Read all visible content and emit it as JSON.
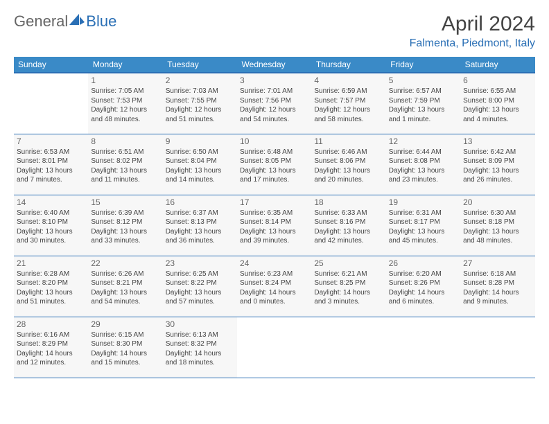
{
  "logo": {
    "text1": "General",
    "text2": "Blue"
  },
  "title": "April 2024",
  "location": "Falmenta, Piedmont, Italy",
  "colors": {
    "header_bg": "#3a8ac7",
    "header_border": "#2a6fb5",
    "cell_bg": "#f7f7f7",
    "text": "#444444",
    "accent": "#2a6fb5"
  },
  "weekdays": [
    "Sunday",
    "Monday",
    "Tuesday",
    "Wednesday",
    "Thursday",
    "Friday",
    "Saturday"
  ],
  "weeks": [
    [
      null,
      {
        "n": "1",
        "sr": "7:05 AM",
        "ss": "7:53 PM",
        "dl": "12 hours and 48 minutes."
      },
      {
        "n": "2",
        "sr": "7:03 AM",
        "ss": "7:55 PM",
        "dl": "12 hours and 51 minutes."
      },
      {
        "n": "3",
        "sr": "7:01 AM",
        "ss": "7:56 PM",
        "dl": "12 hours and 54 minutes."
      },
      {
        "n": "4",
        "sr": "6:59 AM",
        "ss": "7:57 PM",
        "dl": "12 hours and 58 minutes."
      },
      {
        "n": "5",
        "sr": "6:57 AM",
        "ss": "7:59 PM",
        "dl": "13 hours and 1 minute."
      },
      {
        "n": "6",
        "sr": "6:55 AM",
        "ss": "8:00 PM",
        "dl": "13 hours and 4 minutes."
      }
    ],
    [
      {
        "n": "7",
        "sr": "6:53 AM",
        "ss": "8:01 PM",
        "dl": "13 hours and 7 minutes."
      },
      {
        "n": "8",
        "sr": "6:51 AM",
        "ss": "8:02 PM",
        "dl": "13 hours and 11 minutes."
      },
      {
        "n": "9",
        "sr": "6:50 AM",
        "ss": "8:04 PM",
        "dl": "13 hours and 14 minutes."
      },
      {
        "n": "10",
        "sr": "6:48 AM",
        "ss": "8:05 PM",
        "dl": "13 hours and 17 minutes."
      },
      {
        "n": "11",
        "sr": "6:46 AM",
        "ss": "8:06 PM",
        "dl": "13 hours and 20 minutes."
      },
      {
        "n": "12",
        "sr": "6:44 AM",
        "ss": "8:08 PM",
        "dl": "13 hours and 23 minutes."
      },
      {
        "n": "13",
        "sr": "6:42 AM",
        "ss": "8:09 PM",
        "dl": "13 hours and 26 minutes."
      }
    ],
    [
      {
        "n": "14",
        "sr": "6:40 AM",
        "ss": "8:10 PM",
        "dl": "13 hours and 30 minutes."
      },
      {
        "n": "15",
        "sr": "6:39 AM",
        "ss": "8:12 PM",
        "dl": "13 hours and 33 minutes."
      },
      {
        "n": "16",
        "sr": "6:37 AM",
        "ss": "8:13 PM",
        "dl": "13 hours and 36 minutes."
      },
      {
        "n": "17",
        "sr": "6:35 AM",
        "ss": "8:14 PM",
        "dl": "13 hours and 39 minutes."
      },
      {
        "n": "18",
        "sr": "6:33 AM",
        "ss": "8:16 PM",
        "dl": "13 hours and 42 minutes."
      },
      {
        "n": "19",
        "sr": "6:31 AM",
        "ss": "8:17 PM",
        "dl": "13 hours and 45 minutes."
      },
      {
        "n": "20",
        "sr": "6:30 AM",
        "ss": "8:18 PM",
        "dl": "13 hours and 48 minutes."
      }
    ],
    [
      {
        "n": "21",
        "sr": "6:28 AM",
        "ss": "8:20 PM",
        "dl": "13 hours and 51 minutes."
      },
      {
        "n": "22",
        "sr": "6:26 AM",
        "ss": "8:21 PM",
        "dl": "13 hours and 54 minutes."
      },
      {
        "n": "23",
        "sr": "6:25 AM",
        "ss": "8:22 PM",
        "dl": "13 hours and 57 minutes."
      },
      {
        "n": "24",
        "sr": "6:23 AM",
        "ss": "8:24 PM",
        "dl": "14 hours and 0 minutes."
      },
      {
        "n": "25",
        "sr": "6:21 AM",
        "ss": "8:25 PM",
        "dl": "14 hours and 3 minutes."
      },
      {
        "n": "26",
        "sr": "6:20 AM",
        "ss": "8:26 PM",
        "dl": "14 hours and 6 minutes."
      },
      {
        "n": "27",
        "sr": "6:18 AM",
        "ss": "8:28 PM",
        "dl": "14 hours and 9 minutes."
      }
    ],
    [
      {
        "n": "28",
        "sr": "6:16 AM",
        "ss": "8:29 PM",
        "dl": "14 hours and 12 minutes."
      },
      {
        "n": "29",
        "sr": "6:15 AM",
        "ss": "8:30 PM",
        "dl": "14 hours and 15 minutes."
      },
      {
        "n": "30",
        "sr": "6:13 AM",
        "ss": "8:32 PM",
        "dl": "14 hours and 18 minutes."
      },
      null,
      null,
      null,
      null
    ]
  ],
  "labels": {
    "sunrise": "Sunrise:",
    "sunset": "Sunset:",
    "daylight": "Daylight:"
  }
}
